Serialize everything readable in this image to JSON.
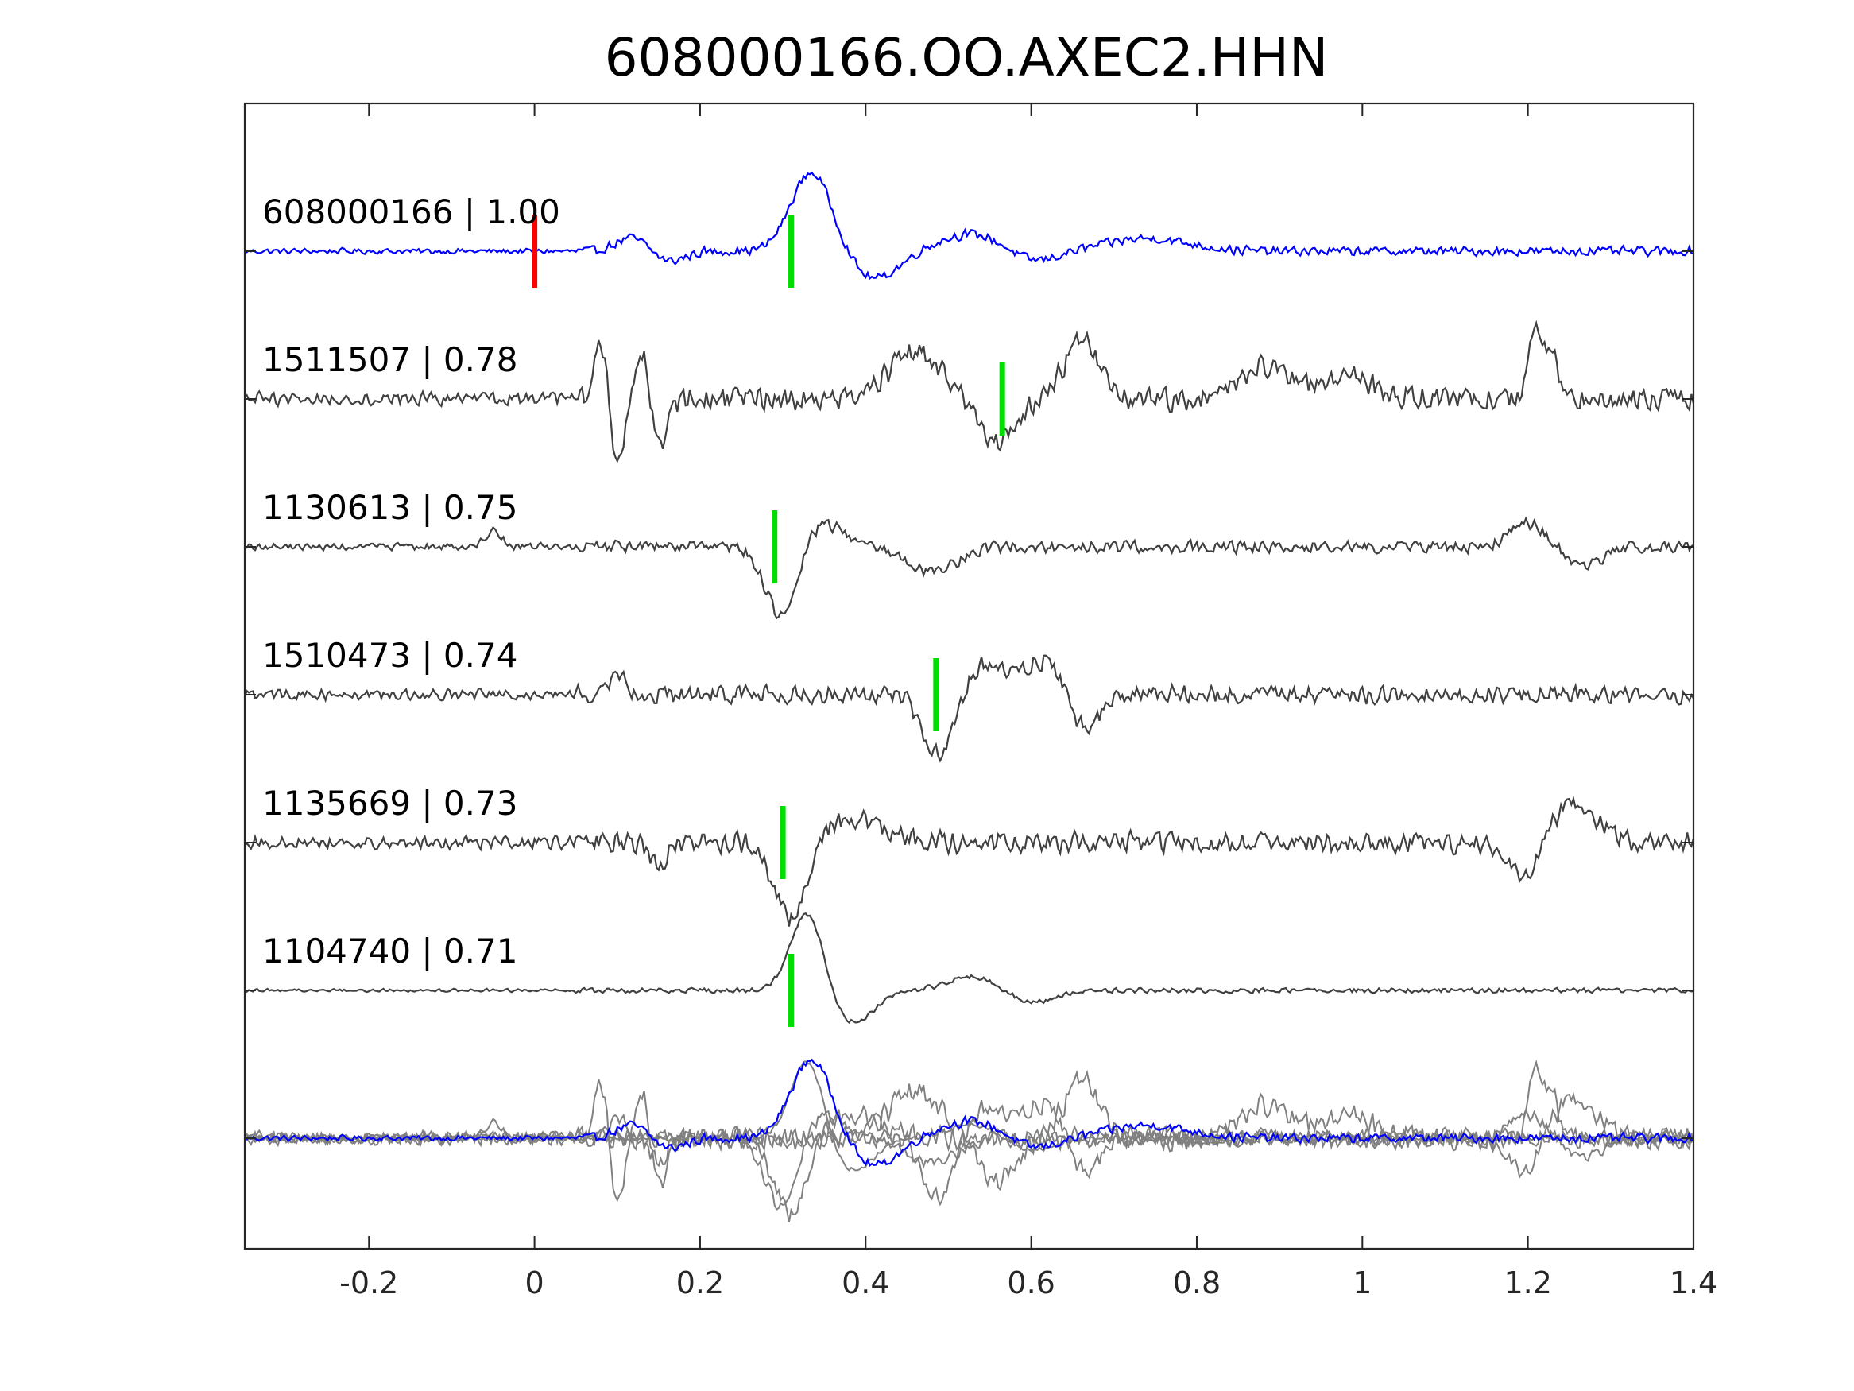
{
  "chart_data": {
    "type": "line",
    "title": "608000166.OO.AXEC2.HHN",
    "xlabel": "",
    "ylabel": "",
    "xlim": [
      -0.35,
      1.4
    ],
    "xticks": [
      -0.2,
      0,
      0.2,
      0.4,
      0.6,
      0.8,
      1,
      1.2,
      1.4
    ],
    "xtick_labels": [
      "-0.2",
      "0",
      "0.2",
      "0.4",
      "0.6",
      "0.8",
      "1",
      "1.2",
      "1.4"
    ],
    "grid": false,
    "colors": {
      "master": "#0000ff",
      "trace": "#404040",
      "overlay": "#808080",
      "origin_marker": "#ff0000",
      "pick_marker": "#00dd00",
      "axes": "#262626"
    },
    "series": [
      {
        "event": "608000166",
        "cc": "1.00",
        "label": "608000166 | 1.00",
        "master": true,
        "pick_time": 0.31,
        "origin_time": 0.0,
        "flip": 1,
        "peaks": [
          [
            0.335,
            1.0,
            0.025
          ],
          [
            0.41,
            -0.35,
            0.03
          ],
          [
            0.53,
            0.22,
            0.04
          ],
          [
            0.6,
            -0.15,
            0.03
          ],
          [
            0.74,
            0.16,
            0.05
          ],
          [
            0.12,
            0.18,
            0.02
          ],
          [
            0.16,
            -0.14,
            0.02
          ]
        ],
        "noise": 0.09
      },
      {
        "event": "1511507",
        "cc": "0.78",
        "label": "1511507 | 0.78",
        "pick_time": 0.565,
        "flip": -1,
        "peaks": [
          [
            0.08,
            0.7,
            0.008
          ],
          [
            0.1,
            -0.8,
            0.008
          ],
          [
            0.13,
            0.7,
            0.008
          ],
          [
            0.15,
            -0.6,
            0.01
          ],
          [
            0.46,
            0.6,
            0.03
          ],
          [
            0.56,
            -0.55,
            0.02
          ],
          [
            0.66,
            0.75,
            0.02
          ],
          [
            0.88,
            0.4,
            0.03
          ],
          [
            0.98,
            0.3,
            0.03
          ],
          [
            1.21,
            0.9,
            0.008
          ],
          [
            1.23,
            0.5,
            0.008
          ]
        ],
        "noise": 0.22
      },
      {
        "event": "1130613",
        "cc": "0.75",
        "label": "1130613 | 0.75",
        "pick_time": 0.29,
        "flip": 1,
        "peaks": [
          [
            0.3,
            -1.0,
            0.02
          ],
          [
            0.34,
            0.35,
            0.03
          ],
          [
            0.48,
            -0.3,
            0.03
          ],
          [
            -0.05,
            0.2,
            0.01
          ],
          [
            1.2,
            0.3,
            0.02
          ],
          [
            1.27,
            -0.25,
            0.02
          ]
        ],
        "noise": 0.12
      },
      {
        "event": "1510473",
        "cc": "0.74",
        "label": "1510473 | 0.74",
        "pick_time": 0.485,
        "flip": 1,
        "peaks": [
          [
            0.49,
            -1.0,
            0.02
          ],
          [
            0.53,
            0.4,
            0.04
          ],
          [
            0.63,
            0.5,
            0.03
          ],
          [
            0.66,
            -0.7,
            0.02
          ],
          [
            0.1,
            0.3,
            0.01
          ]
        ],
        "noise": 0.18
      },
      {
        "event": "1135669",
        "cc": "0.73",
        "label": "1135669 | 0.73",
        "pick_time": 0.3,
        "flip": 1,
        "peaks": [
          [
            0.31,
            -1.0,
            0.02
          ],
          [
            0.38,
            0.3,
            0.04
          ],
          [
            1.2,
            -0.5,
            0.02
          ],
          [
            1.25,
            0.5,
            0.03
          ],
          [
            0.15,
            -0.3,
            0.01
          ]
        ],
        "noise": 0.2
      },
      {
        "event": "1104740",
        "cc": "0.71",
        "label": "1104740 | 0.71",
        "pick_time": 0.31,
        "flip": 1,
        "peaks": [
          [
            0.33,
            1.0,
            0.02
          ],
          [
            0.37,
            -0.3,
            0.02
          ],
          [
            0.53,
            0.18,
            0.03
          ],
          [
            0.6,
            -0.15,
            0.03
          ],
          [
            0.4,
            -0.25,
            0.02
          ]
        ],
        "noise": 0.05
      }
    ],
    "overlay": true
  }
}
